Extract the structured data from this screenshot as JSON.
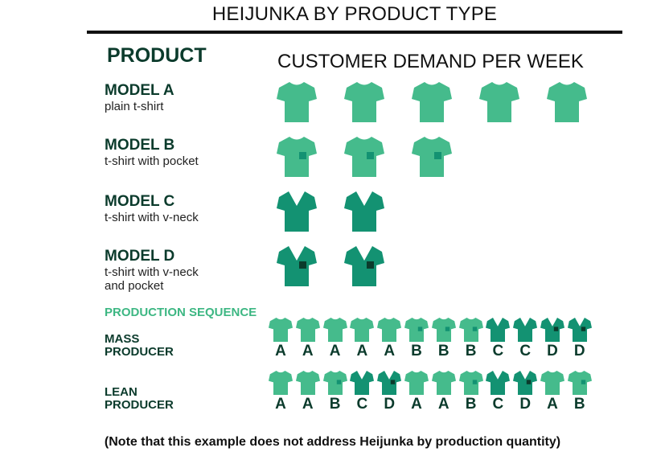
{
  "title": "HEIJUNKA BY PRODUCT TYPE",
  "product_header": "PRODUCT",
  "demand_header": "CUSTOMER DEMAND PER WEEK",
  "models": [
    {
      "name": "MODEL A",
      "desc": [
        "plain t-shirt"
      ],
      "type": "A",
      "demand": 5
    },
    {
      "name": "MODEL B",
      "desc": [
        "t-shirt with pocket"
      ],
      "type": "B",
      "demand": 3
    },
    {
      "name": "MODEL C",
      "desc": [
        "t-shirt with v-neck"
      ],
      "type": "C",
      "demand": 2
    },
    {
      "name": "MODEL D",
      "desc": [
        "t-shirt with v-neck",
        "and pocket"
      ],
      "type": "D",
      "demand": 2
    }
  ],
  "sequence_header": "PRODUCTION SEQUENCE",
  "sequences": [
    {
      "label": [
        "MASS",
        "PRODUCER"
      ],
      "items": [
        "A",
        "A",
        "A",
        "A",
        "A",
        "B",
        "B",
        "B",
        "C",
        "C",
        "D",
        "D"
      ]
    },
    {
      "label": [
        "LEAN",
        "PRODUCER"
      ],
      "items": [
        "A",
        "A",
        "B",
        "C",
        "D",
        "A",
        "A",
        "B",
        "C",
        "D",
        "A",
        "B"
      ]
    }
  ],
  "note": "(Note that this example does not address Heijunka by production quantity)",
  "colors": {
    "light_shirt": "#45bb8c",
    "dark_shirt": "#139272",
    "pocket_on_light": "#139272",
    "pocket_on_dark": "#0b3b2c",
    "heading_green": "#3db783",
    "text_dark": "#0b3b2c"
  }
}
